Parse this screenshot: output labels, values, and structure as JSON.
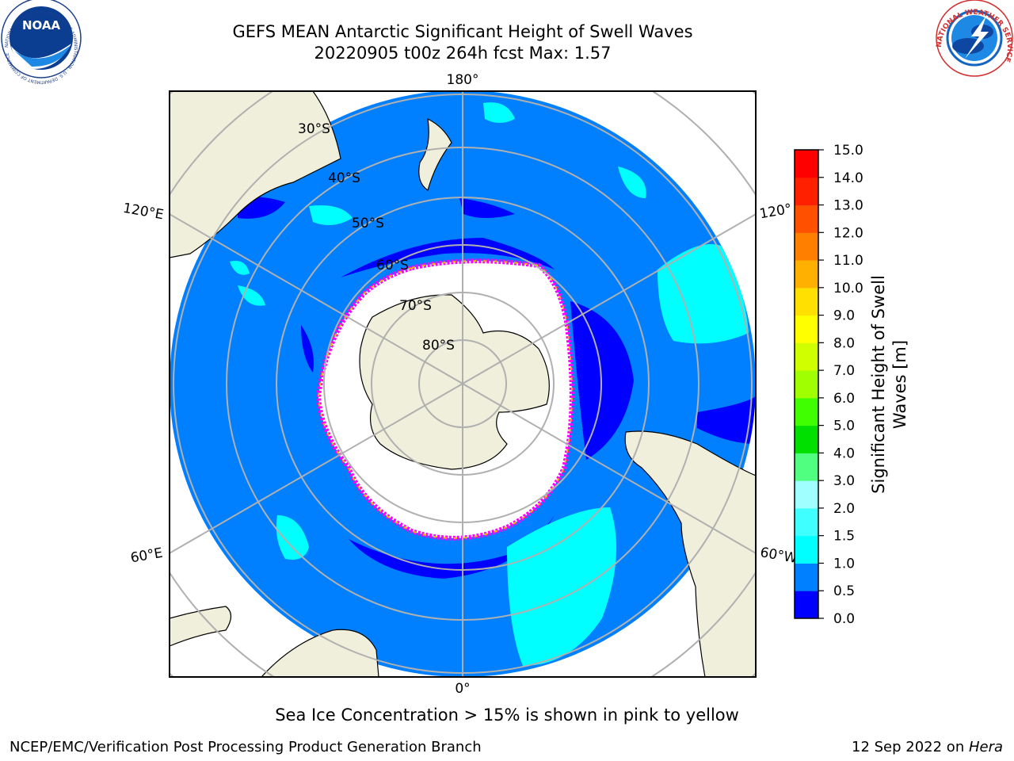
{
  "header": {
    "title_line1": "GEFS MEAN Antarctic Significant Height of Swell Waves",
    "title_line2": "20220905 t00z 264h fcst   Max: 1.57"
  },
  "logos": {
    "left": {
      "name": "noaa-logo",
      "text": "NOAA",
      "ring_text": "NATIONAL OCEANIC AND ATMOSPHERIC ADMINISTRATION · U.S. DEPARTMENT OF COMMERCE"
    },
    "right": {
      "name": "nws-logo",
      "ring_text": "NATIONAL WEATHER SERVICE"
    }
  },
  "map": {
    "projection": "south-polar-stereographic",
    "longitude_labels": {
      "top": "180°",
      "bottom": "0°",
      "upper_left": "120°E",
      "lower_left": "60°E",
      "upper_right": "120°",
      "lower_right": "60°W"
    },
    "latitude_labels": [
      "30°S",
      "40°S",
      "50°S",
      "60°S",
      "70°S",
      "80°S"
    ],
    "colors": {
      "land": "#efefdc",
      "ocean_low": "#0000ff",
      "ocean_mid": "#0080ff",
      "ocean_high": "#00ffff",
      "ice_edge": [
        "#ff00ff",
        "#ffff00",
        "#ffb000"
      ],
      "grid": "#b0b0b0"
    }
  },
  "colorbar": {
    "label_line1": "Significant Height of Swell",
    "label_line2": "Waves [m]",
    "ticks": [
      "0.0",
      "0.5",
      "1.0",
      "1.5",
      "2.0",
      "3.0",
      "4.0",
      "5.0",
      "6.0",
      "7.0",
      "8.0",
      "9.0",
      "10.0",
      "11.0",
      "12.0",
      "13.0",
      "14.0",
      "15.0"
    ],
    "colors": [
      "#0000ff",
      "#0080ff",
      "#00ffff",
      "#40ffff",
      "#a0ffff",
      "#50ff80",
      "#00e000",
      "#40ff00",
      "#a0ff00",
      "#d0ff00",
      "#ffff00",
      "#ffe000",
      "#ffb000",
      "#ff8000",
      "#ff5000",
      "#ff2000",
      "#ff0000"
    ]
  },
  "caption": "Sea Ice Concentration > 15% is shown in pink to yellow",
  "footer": {
    "left": "NCEP/EMC/Verification Post Processing Product Generation Branch",
    "right_prefix": "12 Sep 2022 on ",
    "right_host": "Hera"
  }
}
